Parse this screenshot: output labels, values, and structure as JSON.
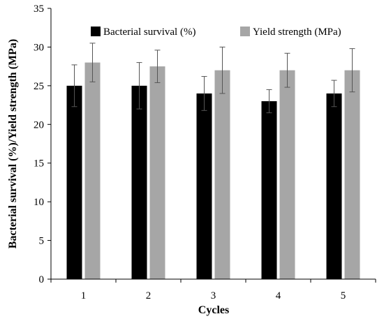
{
  "chart_data": {
    "type": "bar",
    "xlabel": "Cycles",
    "ylabel": "Bacterial survival (%)/Yield strength (MPa)",
    "ylim": [
      0,
      35
    ],
    "yticks": [
      0,
      5,
      10,
      15,
      20,
      25,
      30,
      35
    ],
    "categories": [
      "1",
      "2",
      "3",
      "4",
      "5"
    ],
    "grid": false,
    "legend_position": "top",
    "series": [
      {
        "name": "Bacterial survival (%)",
        "color": "#000000",
        "values": [
          25.0,
          25.0,
          24.0,
          23.0,
          24.0
        ],
        "errors": [
          2.7,
          3.0,
          2.2,
          1.5,
          1.7
        ]
      },
      {
        "name": "Yield strength (MPa)",
        "color": "#a6a6a6",
        "values": [
          28.0,
          27.5,
          27.0,
          27.0,
          27.0
        ],
        "errors": [
          2.5,
          2.1,
          3.0,
          2.2,
          2.8
        ]
      }
    ]
  }
}
